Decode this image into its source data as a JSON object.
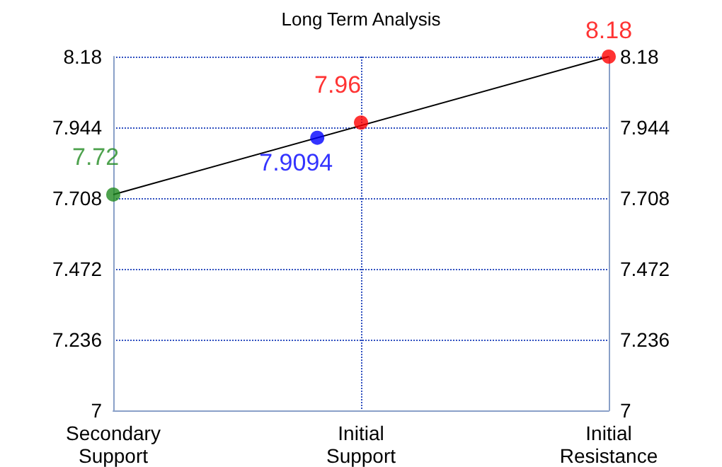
{
  "chart_data": {
    "type": "scatter",
    "title": "Long Term Analysis",
    "categories": [
      "Secondary\nSupport",
      "Initial\nSupport",
      "Initial\nResistance"
    ],
    "ylim": [
      7,
      8.18
    ],
    "yticks": [
      7,
      7.236,
      7.472,
      7.708,
      7.944,
      8.18
    ],
    "y2lim": [
      7,
      8.18
    ],
    "y2ticks": [
      7,
      7.236,
      7.472,
      7.708,
      7.944,
      8.18
    ],
    "grid": true,
    "marker": "circle",
    "series": [
      {
        "type": "line",
        "color": "#000000",
        "values": [
          7.72,
          null,
          8.18
        ],
        "line_style": "solid",
        "marker": "none"
      },
      {
        "values": [
          7.72,
          7.96,
          8.18
        ],
        "colors": [
          "#228b22",
          "#ff0000",
          "#ff0000"
        ],
        "value_labels": [
          "7.72",
          "7.96",
          "8.18"
        ]
      },
      {
        "values": [
          null,
          7.9094,
          null
        ],
        "color": "#0000ff",
        "value_labels": [
          null,
          "7.9094",
          null
        ]
      }
    ]
  }
}
